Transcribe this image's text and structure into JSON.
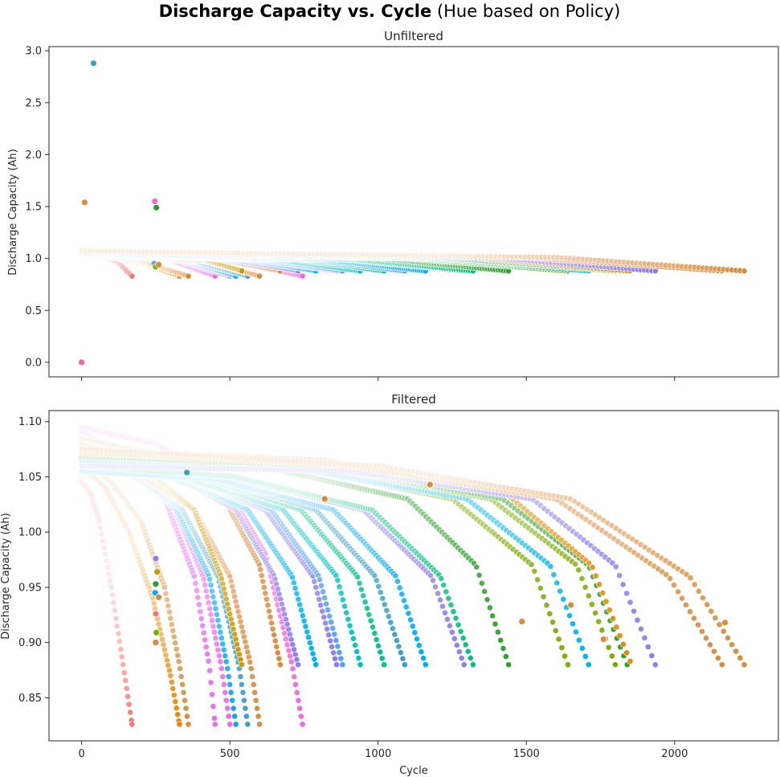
{
  "figure": {
    "title_bold": "Discharge Capacity vs. Cycle",
    "title_normal": " (Hue based on Policy)"
  },
  "chart_data": [
    {
      "type": "scatter",
      "title": "Unfiltered",
      "xlabel": "",
      "ylabel": "Discharge Capacity (Ah)",
      "xlim": [
        -110,
        2350
      ],
      "ylim": [
        -0.14,
        3.04
      ],
      "xticks": [
        0,
        500,
        1000,
        1500,
        2000
      ],
      "show_xtick_labels": false,
      "yticks": [
        0.0,
        0.5,
        1.0,
        1.5,
        2.0,
        2.5,
        3.0
      ],
      "ytick_labels": [
        "0.0",
        "0.5",
        "1.0",
        "1.5",
        "2.0",
        "2.5",
        "3.0"
      ],
      "grid": false,
      "series": [
        {
          "color": "#f8766d",
          "x": [
            0,
            120,
            170
          ],
          "y": [
            1.07,
            0.97,
            0.83
          ]
        },
        {
          "color": "#e58700",
          "x": [
            0,
            200,
            330
          ],
          "y": [
            1.06,
            0.96,
            0.83
          ]
        },
        {
          "color": "#d98b3a",
          "x": [
            0,
            200,
            360
          ],
          "y": [
            1.08,
            0.97,
            0.83
          ]
        },
        {
          "color": "#e76bf3",
          "x": [
            0,
            300,
            450
          ],
          "y": [
            1.08,
            0.98,
            0.83
          ]
        },
        {
          "color": "#ef67eb",
          "x": [
            0,
            330,
            500
          ],
          "y": [
            1.07,
            0.98,
            0.83
          ]
        },
        {
          "color": "#00a9ff",
          "x": [
            0,
            350,
            520
          ],
          "y": [
            1.06,
            0.98,
            0.83
          ]
        },
        {
          "color": "#3a9fc8",
          "x": [
            0,
            380,
            560
          ],
          "y": [
            1.05,
            0.97,
            0.83
          ]
        },
        {
          "color": "#d98b3a",
          "x": [
            0,
            420,
            600
          ],
          "y": [
            1.06,
            0.97,
            0.83
          ]
        },
        {
          "color": "#f564e3",
          "x": [
            0,
            500,
            745
          ],
          "y": [
            1.07,
            0.98,
            0.83
          ]
        },
        {
          "color": "#cd9600",
          "x": [
            0,
            400,
            540
          ],
          "y": [
            1.08,
            1.0,
            0.88
          ]
        },
        {
          "color": "#d98b3a",
          "x": [
            0,
            450,
            670
          ],
          "y": [
            1.09,
            1.0,
            0.88
          ]
        },
        {
          "color": "#8c7ef0",
          "x": [
            0,
            500,
            730
          ],
          "y": [
            1.06,
            0.99,
            0.88
          ]
        },
        {
          "color": "#00b0f6",
          "x": [
            0,
            550,
            790
          ],
          "y": [
            1.06,
            0.99,
            0.88
          ]
        },
        {
          "color": "#8c7ef0",
          "x": [
            0,
            580,
            860
          ],
          "y": [
            1.05,
            0.99,
            0.88
          ]
        },
        {
          "color": "#529efe",
          "x": [
            0,
            620,
            880
          ],
          "y": [
            1.06,
            0.99,
            0.88
          ]
        },
        {
          "color": "#00bfc4",
          "x": [
            0,
            650,
            940
          ],
          "y": [
            1.05,
            0.99,
            0.88
          ]
        },
        {
          "color": "#00c08b",
          "x": [
            0,
            720,
            1020
          ],
          "y": [
            1.06,
            0.99,
            0.88
          ]
        },
        {
          "color": "#3a9fc8",
          "x": [
            0,
            750,
            1090
          ],
          "y": [
            1.06,
            0.99,
            0.88
          ]
        },
        {
          "color": "#00a9ff",
          "x": [
            0,
            800,
            1160
          ],
          "y": [
            1.05,
            0.99,
            0.88
          ]
        },
        {
          "color": "#8c7ef0",
          "x": [
            0,
            900,
            1290
          ],
          "y": [
            1.06,
            0.99,
            0.88
          ]
        },
        {
          "color": "#00bf7d",
          "x": [
            0,
            920,
            1320
          ],
          "y": [
            1.06,
            0.99,
            0.88
          ]
        },
        {
          "color": "#2ca02c",
          "x": [
            0,
            1000,
            1440
          ],
          "y": [
            1.07,
            1.0,
            0.88
          ]
        },
        {
          "color": "#7cae00",
          "x": [
            0,
            1100,
            1640
          ],
          "y": [
            1.08,
            1.0,
            0.88
          ]
        },
        {
          "color": "#00b6eb",
          "x": [
            0,
            1150,
            1710
          ],
          "y": [
            1.07,
            1.0,
            0.88
          ]
        },
        {
          "color": "#7cae00",
          "x": [
            0,
            1200,
            1800
          ],
          "y": [
            1.08,
            1.0,
            0.88
          ]
        },
        {
          "color": "#2ca02c",
          "x": [
            0,
            1250,
            1840
          ],
          "y": [
            1.07,
            1.0,
            0.88
          ]
        },
        {
          "color": "#de8c00",
          "x": [
            0,
            1300,
            1850
          ],
          "y": [
            1.08,
            1.01,
            0.88
          ]
        },
        {
          "color": "#8c7ef0",
          "x": [
            0,
            1400,
            1935
          ],
          "y": [
            1.06,
            1.0,
            0.88
          ]
        },
        {
          "color": "#d98b3a",
          "x": [
            0,
            1500,
            2160
          ],
          "y": [
            1.07,
            1.01,
            0.88
          ]
        },
        {
          "color": "#d98b3a",
          "x": [
            0,
            1600,
            2235
          ],
          "y": [
            1.07,
            1.01,
            0.88
          ]
        }
      ],
      "outliers": [
        {
          "x": 40,
          "y": 2.88,
          "color": "#3a9fc8"
        },
        {
          "x": 10,
          "y": 1.54,
          "color": "#d98b3a"
        },
        {
          "x": 247,
          "y": 1.55,
          "color": "#f564e3"
        },
        {
          "x": 252,
          "y": 1.49,
          "color": "#2ca02c"
        },
        {
          "x": 0,
          "y": 0.0,
          "color": "#f5649c"
        },
        {
          "x": 245,
          "y": 0.95,
          "color": "#529efe"
        },
        {
          "x": 250,
          "y": 0.92,
          "color": "#7cae00"
        },
        {
          "x": 260,
          "y": 0.94,
          "color": "#d98b3a"
        }
      ]
    },
    {
      "type": "scatter",
      "title": "Filtered",
      "xlabel": "Cycle",
      "ylabel": "Discharge Capacity (Ah)",
      "xlim": [
        -110,
        2350
      ],
      "ylim": [
        0.811,
        1.11
      ],
      "xticks": [
        0,
        500,
        1000,
        1500,
        2000
      ],
      "xtick_labels": [
        "0",
        "500",
        "1000",
        "1500",
        "2000"
      ],
      "show_xtick_labels": true,
      "yticks": [
        0.85,
        0.9,
        0.95,
        1.0,
        1.05,
        1.1
      ],
      "ytick_labels": [
        "0.85",
        "0.90",
        "0.95",
        "1.00",
        "1.05",
        "1.10"
      ],
      "grid": false,
      "series": [
        {
          "color": "#f8766d",
          "x": [
            0,
            30,
            60,
            100,
            140,
            170
          ],
          "y": [
            1.045,
            1.035,
            1.01,
            0.95,
            0.88,
            0.826
          ]
        },
        {
          "color": "#e58700",
          "x": [
            0,
            80,
            160,
            240,
            300,
            330
          ],
          "y": [
            1.06,
            1.04,
            1.0,
            0.94,
            0.87,
            0.826
          ]
        },
        {
          "color": "#d98b3a",
          "x": [
            0,
            100,
            200,
            280,
            330,
            360
          ],
          "y": [
            1.065,
            1.045,
            1.01,
            0.95,
            0.88,
            0.826
          ]
        },
        {
          "color": "#e76bf3",
          "x": [
            0,
            150,
            280,
            380,
            430,
            450
          ],
          "y": [
            1.09,
            1.07,
            1.03,
            0.96,
            0.88,
            0.826
          ]
        },
        {
          "color": "#ef67eb",
          "x": [
            0,
            160,
            300,
            410,
            470,
            500
          ],
          "y": [
            1.085,
            1.07,
            1.03,
            0.96,
            0.88,
            0.826
          ]
        },
        {
          "color": "#00a9ff",
          "x": [
            0,
            170,
            320,
            430,
            490,
            520
          ],
          "y": [
            1.07,
            1.055,
            1.02,
            0.96,
            0.88,
            0.826
          ]
        },
        {
          "color": "#3a9fc8",
          "x": [
            0,
            180,
            340,
            460,
            530,
            560
          ],
          "y": [
            1.06,
            1.05,
            1.02,
            0.96,
            0.88,
            0.826
          ]
        },
        {
          "color": "#d98b3a",
          "x": [
            0,
            200,
            380,
            500,
            570,
            600
          ],
          "y": [
            1.065,
            1.05,
            1.02,
            0.96,
            0.88,
            0.826
          ]
        },
        {
          "color": "#f564e3",
          "x": [
            0,
            250,
            480,
            620,
            710,
            745
          ],
          "y": [
            1.095,
            1.08,
            1.045,
            0.98,
            0.88,
            0.826
          ]
        },
        {
          "color": "#cd9600",
          "x": [
            0,
            200,
            380,
            470,
            540
          ],
          "y": [
            1.08,
            1.06,
            1.02,
            0.96,
            0.88
          ]
        },
        {
          "color": "#d98b3a",
          "x": [
            0,
            250,
            480,
            600,
            670
          ],
          "y": [
            1.085,
            1.07,
            1.03,
            0.97,
            0.88
          ]
        },
        {
          "color": "#8c7ef0",
          "x": [
            0,
            280,
            520,
            650,
            730
          ],
          "y": [
            1.065,
            1.055,
            1.02,
            0.96,
            0.88
          ]
        },
        {
          "color": "#00b0f6",
          "x": [
            0,
            300,
            560,
            710,
            790
          ],
          "y": [
            1.06,
            1.05,
            1.02,
            0.96,
            0.88
          ]
        },
        {
          "color": "#8c7ef0",
          "x": [
            0,
            330,
            620,
            780,
            860
          ],
          "y": [
            1.055,
            1.05,
            1.02,
            0.96,
            0.88
          ]
        },
        {
          "color": "#529efe",
          "x": [
            0,
            340,
            640,
            800,
            880
          ],
          "y": [
            1.06,
            1.05,
            1.02,
            0.96,
            0.88
          ]
        },
        {
          "color": "#00bfc4",
          "x": [
            0,
            360,
            680,
            860,
            940
          ],
          "y": [
            1.055,
            1.048,
            1.02,
            0.96,
            0.88
          ]
        },
        {
          "color": "#00c08b",
          "x": [
            0,
            400,
            740,
            930,
            1020
          ],
          "y": [
            1.06,
            1.05,
            1.02,
            0.96,
            0.88
          ]
        },
        {
          "color": "#3a9fc8",
          "x": [
            0,
            420,
            790,
            990,
            1090
          ],
          "y": [
            1.06,
            1.05,
            1.02,
            0.96,
            0.88
          ]
        },
        {
          "color": "#00a9ff",
          "x": [
            0,
            450,
            850,
            1060,
            1160
          ],
          "y": [
            1.055,
            1.048,
            1.02,
            0.96,
            0.88
          ]
        },
        {
          "color": "#8c7ef0",
          "x": [
            0,
            500,
            950,
            1180,
            1290
          ],
          "y": [
            1.06,
            1.05,
            1.02,
            0.96,
            0.88
          ]
        },
        {
          "color": "#00bf7d",
          "x": [
            0,
            520,
            980,
            1210,
            1320
          ],
          "y": [
            1.06,
            1.05,
            1.02,
            0.96,
            0.88
          ]
        },
        {
          "color": "#2ca02c",
          "x": [
            0,
            600,
            1100,
            1330,
            1440
          ],
          "y": [
            1.07,
            1.06,
            1.03,
            0.97,
            0.88
          ]
        },
        {
          "color": "#7cae00",
          "x": [
            0,
            700,
            1250,
            1520,
            1640
          ],
          "y": [
            1.07,
            1.06,
            1.03,
            0.97,
            0.88
          ]
        },
        {
          "color": "#00b6eb",
          "x": [
            0,
            720,
            1300,
            1580,
            1710
          ],
          "y": [
            1.065,
            1.058,
            1.03,
            0.97,
            0.88
          ]
        },
        {
          "color": "#7cae00",
          "x": [
            0,
            780,
            1380,
            1670,
            1800
          ],
          "y": [
            1.07,
            1.06,
            1.03,
            0.97,
            0.88
          ]
        },
        {
          "color": "#2ca02c",
          "x": [
            0,
            800,
            1420,
            1710,
            1840
          ],
          "y": [
            1.068,
            1.06,
            1.03,
            0.97,
            0.88
          ]
        },
        {
          "color": "#de8c00",
          "x": [
            0,
            820,
            1430,
            1720,
            1850
          ],
          "y": [
            1.075,
            1.065,
            1.035,
            0.97,
            0.883
          ]
        },
        {
          "color": "#8c7ef0",
          "x": [
            0,
            900,
            1520,
            1800,
            1935
          ],
          "y": [
            1.06,
            1.055,
            1.03,
            0.97,
            0.88
          ]
        },
        {
          "color": "#d98b3a",
          "x": [
            0,
            900,
            1600,
            1980,
            2160
          ],
          "y": [
            1.072,
            1.06,
            1.03,
            0.96,
            0.88
          ]
        },
        {
          "color": "#d98b3a",
          "x": [
            0,
            1000,
            1650,
            2050,
            2235
          ],
          "y": [
            1.075,
            1.06,
            1.03,
            0.96,
            0.88
          ]
        }
      ],
      "outliers": [
        {
          "x": 250,
          "y": 0.976,
          "color": "#8c7ef0"
        },
        {
          "x": 255,
          "y": 0.964,
          "color": "#cd9600"
        },
        {
          "x": 250,
          "y": 0.953,
          "color": "#2ca02c"
        },
        {
          "x": 248,
          "y": 0.945,
          "color": "#00a9ff"
        },
        {
          "x": 260,
          "y": 0.941,
          "color": "#d98b3a"
        },
        {
          "x": 250,
          "y": 0.926,
          "color": "#f8766d"
        },
        {
          "x": 252,
          "y": 0.909,
          "color": "#7cae00"
        },
        {
          "x": 250,
          "y": 0.9,
          "color": "#d98b3a"
        },
        {
          "x": 355,
          "y": 1.054,
          "color": "#3a9fc8"
        },
        {
          "x": 1485,
          "y": 0.919,
          "color": "#d98b3a"
        },
        {
          "x": 1650,
          "y": 0.934,
          "color": "#d98b3a"
        },
        {
          "x": 1760,
          "y": 0.903,
          "color": "#d98b3a"
        },
        {
          "x": 2170,
          "y": 0.918,
          "color": "#d98b3a"
        },
        {
          "x": 1175,
          "y": 1.043,
          "color": "#d98b3a"
        },
        {
          "x": 820,
          "y": 1.03,
          "color": "#d98b3a"
        }
      ]
    }
  ]
}
